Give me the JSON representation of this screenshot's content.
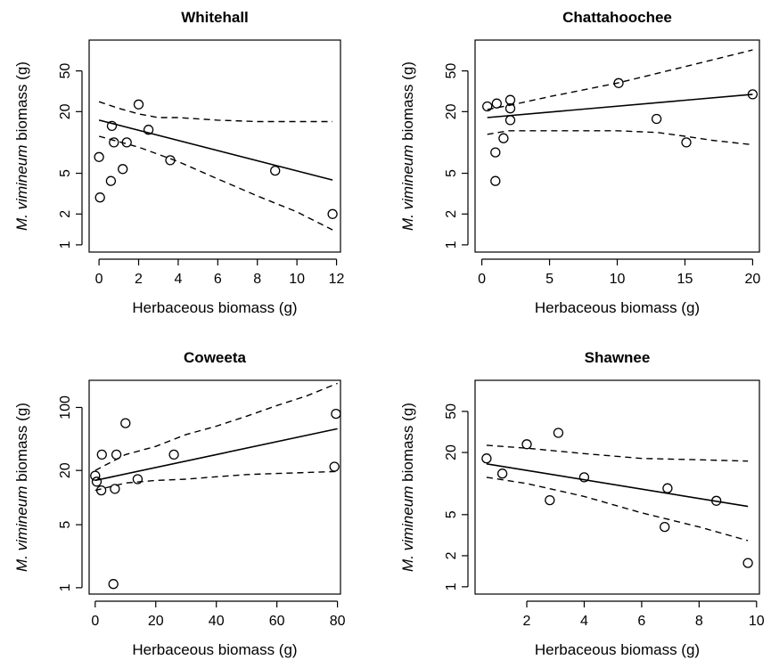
{
  "chart_data": [
    {
      "type": "scatter",
      "title": "Whitehall",
      "xlabel": "Herbaceous biomass (g)",
      "ylabel_italic": "M. vimineum",
      "ylabel_rest": " biomass (g)",
      "y_scale": "log",
      "xlim": [
        -0.5,
        12.2
      ],
      "ylim": [
        0.85,
        100
      ],
      "xticks": [
        0,
        2,
        4,
        6,
        8,
        10,
        12
      ],
      "xtick_labels": [
        "0",
        "2",
        "4",
        "6",
        "8",
        "10",
        "12"
      ],
      "yticks": [
        1,
        2,
        5,
        20,
        50
      ],
      "ytick_labels": [
        "1",
        "2",
        "5",
        "20",
        "50"
      ],
      "points": [
        {
          "x": 0.0,
          "y": 7.2
        },
        {
          "x": 0.05,
          "y": 2.9
        },
        {
          "x": 0.6,
          "y": 4.2
        },
        {
          "x": 0.65,
          "y": 14.5
        },
        {
          "x": 0.75,
          "y": 10.0
        },
        {
          "x": 1.2,
          "y": 5.5
        },
        {
          "x": 1.4,
          "y": 10.0
        },
        {
          "x": 2.0,
          "y": 23.5
        },
        {
          "x": 2.5,
          "y": 13.3
        },
        {
          "x": 3.6,
          "y": 6.7
        },
        {
          "x": 8.9,
          "y": 5.3
        },
        {
          "x": 11.8,
          "y": 2.0
        }
      ],
      "fit": {
        "x": [
          0.0,
          11.8
        ],
        "y": [
          16.5,
          4.3
        ]
      },
      "ci_upper": {
        "x": [
          0.0,
          1.0,
          2.0,
          3.0,
          4.0,
          6.0,
          8.0,
          10.0,
          11.8
        ],
        "y": [
          25.0,
          21.5,
          19.0,
          17.5,
          17.5,
          16.5,
          16.0,
          16.0,
          16.0
        ]
      },
      "ci_lower": {
        "x": [
          0.0,
          2.0,
          4.0,
          6.0,
          8.0,
          10.0,
          11.8
        ],
        "y": [
          11.5,
          9.0,
          6.5,
          4.4,
          3.0,
          2.1,
          1.4
        ]
      }
    },
    {
      "type": "scatter",
      "title": "Chattahoochee",
      "xlabel": "Herbaceous biomass (g)",
      "ylabel_italic": "M. vimineum",
      "ylabel_rest": " biomass (g)",
      "y_scale": "log",
      "xlim": [
        -0.5,
        20.5
      ],
      "ylim": [
        0.85,
        100
      ],
      "xticks": [
        0,
        5,
        10,
        15,
        20
      ],
      "xtick_labels": [
        "0",
        "5",
        "10",
        "15",
        "20"
      ],
      "yticks": [
        1,
        2,
        5,
        20,
        50
      ],
      "ytick_labels": [
        "1",
        "2",
        "5",
        "20",
        "50"
      ],
      "points": [
        {
          "x": 0.4,
          "y": 22.5
        },
        {
          "x": 1.0,
          "y": 8.0
        },
        {
          "x": 1.0,
          "y": 4.2
        },
        {
          "x": 1.1,
          "y": 24.0
        },
        {
          "x": 1.6,
          "y": 11.0
        },
        {
          "x": 2.1,
          "y": 26.0
        },
        {
          "x": 2.1,
          "y": 21.5
        },
        {
          "x": 2.1,
          "y": 16.5
        },
        {
          "x": 10.1,
          "y": 38.0
        },
        {
          "x": 12.9,
          "y": 17.0
        },
        {
          "x": 15.1,
          "y": 10.0
        },
        {
          "x": 20.0,
          "y": 29.5
        }
      ],
      "fit": {
        "x": [
          0.4,
          20.0
        ],
        "y": [
          17.5,
          29.5
        ]
      },
      "ci_upper": {
        "x": [
          0.4,
          2.0,
          5.0,
          10.0,
          15.0,
          20.0
        ],
        "y": [
          21.0,
          23.0,
          28.0,
          38.0,
          55.0,
          80.0
        ]
      },
      "ci_lower": {
        "x": [
          0.4,
          2.0,
          5.0,
          10.0,
          13.0,
          15.0,
          17.0,
          20.0
        ],
        "y": [
          12.0,
          13.0,
          13.0,
          13.0,
          12.5,
          11.5,
          10.5,
          9.5
        ]
      }
    },
    {
      "type": "scatter",
      "title": "Coweeta",
      "xlabel": "Herbaceous biomass (g)",
      "ylabel_italic": "M. vimineum",
      "ylabel_rest": " biomass (g)",
      "y_scale": "log",
      "xlim": [
        -2,
        81
      ],
      "ylim": [
        0.85,
        200
      ],
      "xticks": [
        0,
        20,
        40,
        60,
        80
      ],
      "xtick_labels": [
        "0",
        "20",
        "40",
        "60",
        "80"
      ],
      "yticks": [
        1,
        5,
        20,
        100
      ],
      "ytick_labels": [
        "1",
        "5",
        "20",
        "100"
      ],
      "points": [
        {
          "x": 0.0,
          "y": 17.5
        },
        {
          "x": 0.5,
          "y": 15.0
        },
        {
          "x": 2.0,
          "y": 12.0
        },
        {
          "x": 2.2,
          "y": 30.0
        },
        {
          "x": 6.0,
          "y": 1.1
        },
        {
          "x": 6.5,
          "y": 12.5
        },
        {
          "x": 7.0,
          "y": 30.0
        },
        {
          "x": 10.0,
          "y": 67.0
        },
        {
          "x": 14.0,
          "y": 16.0
        },
        {
          "x": 26.0,
          "y": 30.0
        },
        {
          "x": 79.0,
          "y": 22.0
        },
        {
          "x": 79.5,
          "y": 85.0
        }
      ],
      "fit": {
        "x": [
          0.0,
          80.0
        ],
        "y": [
          15.5,
          58.0
        ]
      },
      "ci_upper": {
        "x": [
          0.0,
          10.0,
          20.0,
          30.0,
          40.0,
          50.0,
          60.0,
          70.0,
          80.0
        ],
        "y": [
          20.0,
          30.0,
          37.0,
          50.0,
          62.0,
          80.0,
          105.0,
          135.0,
          185.0
        ]
      },
      "ci_lower": {
        "x": [
          0.0,
          10.0,
          20.0,
          30.0,
          40.0,
          50.0,
          60.0,
          70.0,
          80.0
        ],
        "y": [
          12.0,
          14.5,
          15.5,
          16.0,
          17.0,
          18.0,
          18.5,
          19.0,
          19.5
        ]
      }
    },
    {
      "type": "scatter",
      "title": "Shawnee",
      "xlabel": "Herbaceous biomass (g)",
      "ylabel_italic": "M. vimineum",
      "ylabel_rest": " biomass (g)",
      "y_scale": "log",
      "xlim": [
        0.2,
        10.1
      ],
      "ylim": [
        0.85,
        100
      ],
      "xticks": [
        2,
        4,
        6,
        8,
        10
      ],
      "xtick_labels": [
        "2",
        "4",
        "6",
        "8",
        "10"
      ],
      "yticks": [
        1,
        2,
        5,
        20,
        50
      ],
      "ytick_labels": [
        "1",
        "2",
        "5",
        "20",
        "50"
      ],
      "points": [
        {
          "x": 0.6,
          "y": 17.5
        },
        {
          "x": 1.15,
          "y": 12.5
        },
        {
          "x": 2.0,
          "y": 24.0
        },
        {
          "x": 2.8,
          "y": 6.9
        },
        {
          "x": 3.1,
          "y": 31.0
        },
        {
          "x": 4.0,
          "y": 11.5
        },
        {
          "x": 6.8,
          "y": 3.8
        },
        {
          "x": 6.9,
          "y": 9.0
        },
        {
          "x": 8.6,
          "y": 6.8
        },
        {
          "x": 9.7,
          "y": 1.7
        }
      ],
      "fit": {
        "x": [
          0.6,
          9.7
        ],
        "y": [
          15.5,
          6.0
        ]
      },
      "ci_upper": {
        "x": [
          0.6,
          2.0,
          4.0,
          6.0,
          8.0,
          9.7
        ],
        "y": [
          23.5,
          22.0,
          19.5,
          17.5,
          17.0,
          16.5
        ]
      },
      "ci_lower": {
        "x": [
          0.6,
          2.0,
          4.0,
          6.0,
          8.0,
          9.7
        ],
        "y": [
          11.5,
          10.0,
          7.5,
          5.2,
          3.8,
          2.8
        ]
      }
    }
  ]
}
